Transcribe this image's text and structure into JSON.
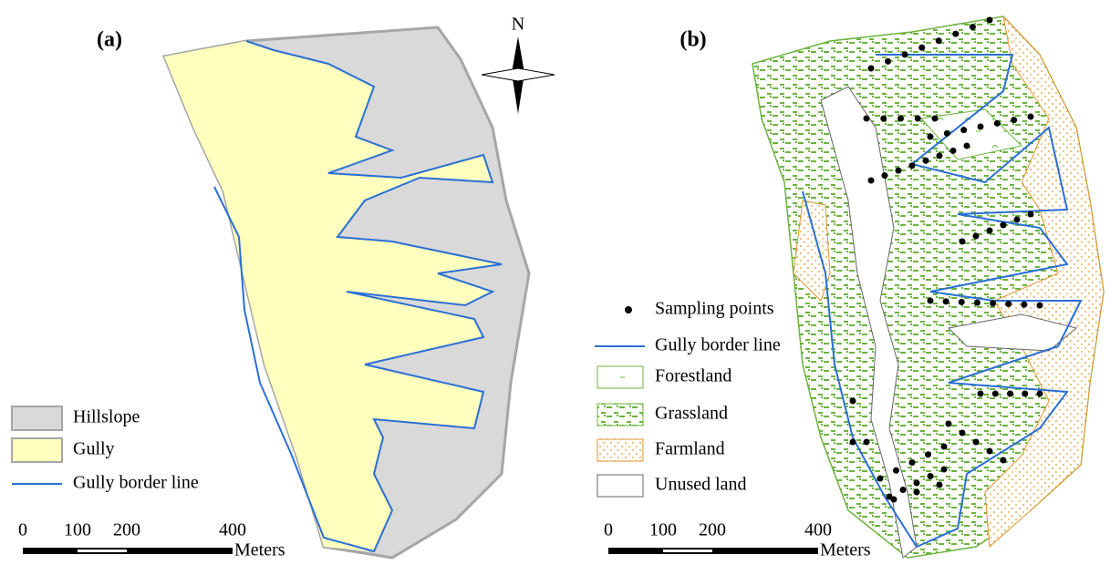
{
  "panels": [
    {
      "label": "(a)",
      "north": "N",
      "legend": [
        {
          "label": "Hillslope"
        },
        {
          "label": "Gully"
        },
        {
          "label": "Gully border line"
        }
      ],
      "scale": {
        "ticks": [
          0,
          100,
          200,
          400
        ],
        "unit": "Meters"
      }
    },
    {
      "label": "(b)",
      "legend": [
        {
          "label": "Sampling points"
        },
        {
          "label": "Gully border line"
        },
        {
          "label": "Forestland"
        },
        {
          "label": "Grassland"
        },
        {
          "label": "Farmland"
        },
        {
          "label": "Unused land"
        }
      ],
      "scale": {
        "ticks": [
          0,
          100,
          200,
          400
        ],
        "unit": "Meters"
      }
    }
  ]
}
